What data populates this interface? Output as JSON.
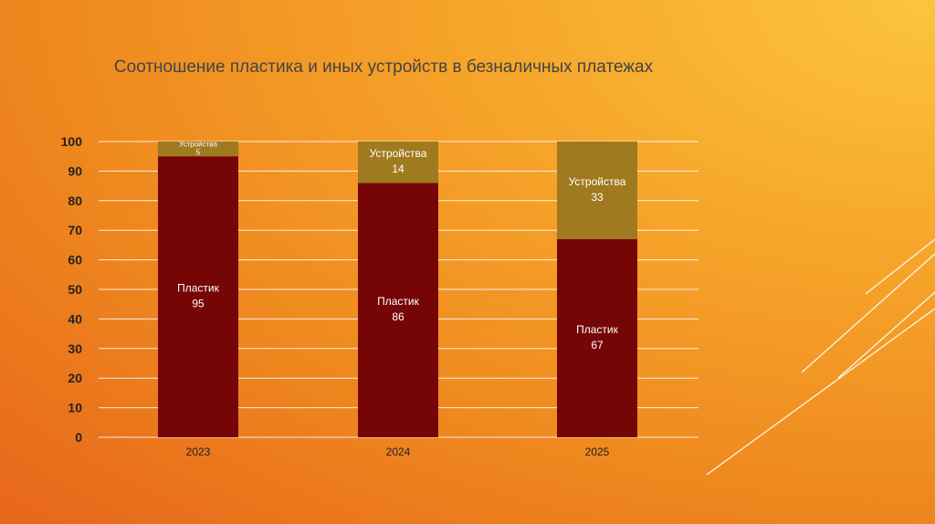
{
  "slide": {
    "title": "Соотношение пластика и иных устройств в безналичных платежах"
  },
  "colors": {
    "plastic": "#760505",
    "devices": "#a07a1f",
    "gridline": "#ffffff",
    "label_light": "#ffffff",
    "axis_text": "#222222"
  },
  "chart_data": {
    "type": "bar",
    "stacked": true,
    "title": "Соотношение пластика и иных устройств в безналичных платежах",
    "xlabel": "",
    "ylabel": "",
    "categories": [
      "2023",
      "2024",
      "2025"
    ],
    "ylim": [
      0,
      100
    ],
    "yticks": [
      0,
      10,
      20,
      30,
      40,
      50,
      60,
      70,
      80,
      90,
      100
    ],
    "grid": true,
    "legend": "none",
    "series": [
      {
        "name": "Пластик",
        "values": [
          95,
          86,
          67
        ]
      },
      {
        "name": "Устройства",
        "values": [
          5,
          14,
          33
        ]
      }
    ]
  }
}
